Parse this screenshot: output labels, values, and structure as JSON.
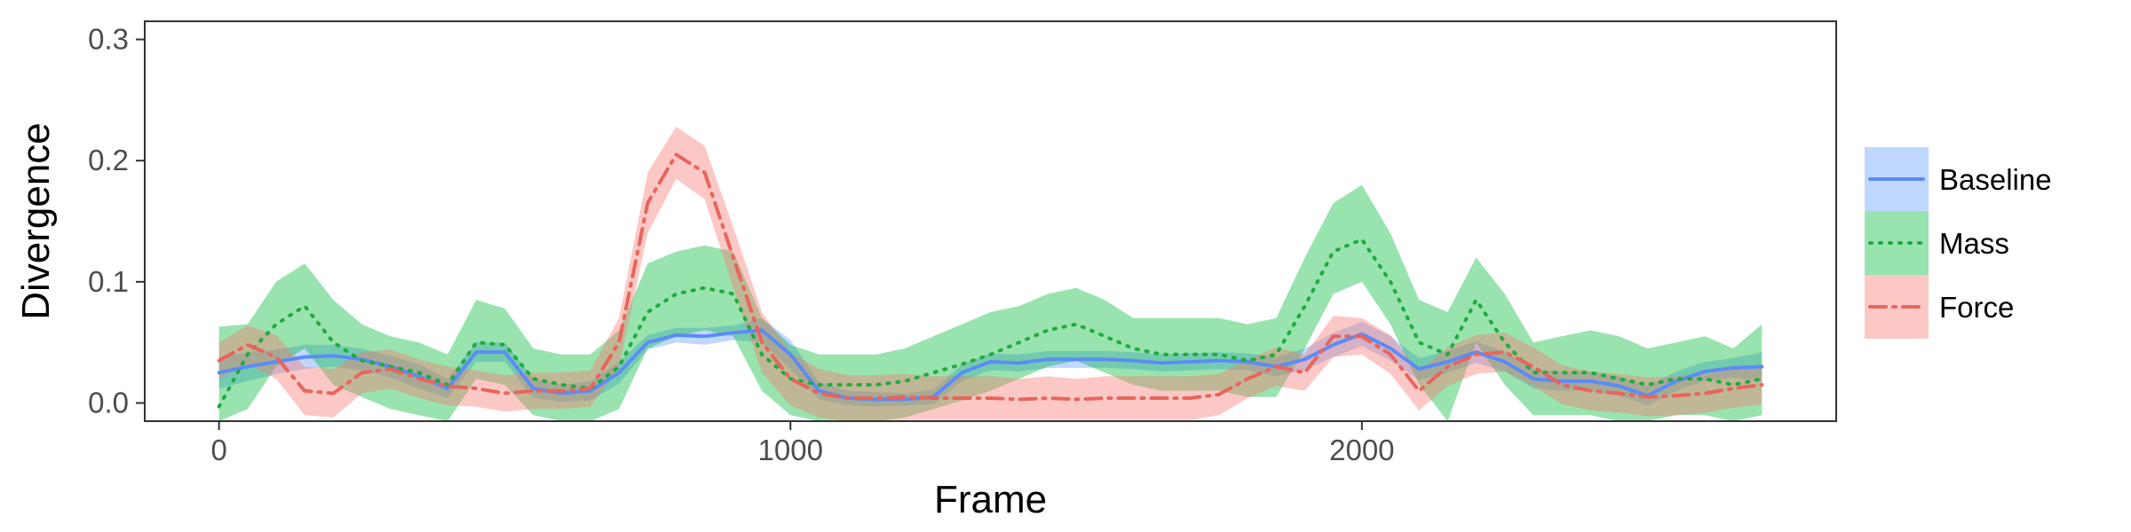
{
  "chart_data": {
    "type": "line",
    "xlabel": "Frame",
    "ylabel": "Divergence",
    "xlim": [
      -130,
      2830
    ],
    "ylim": [
      -0.015,
      0.315
    ],
    "x_ticks": [
      0,
      1000,
      2000
    ],
    "x_tick_labels": [
      "0",
      "1000",
      "2000"
    ],
    "y_ticks": [
      0.0,
      0.1,
      0.2,
      0.3
    ],
    "y_tick_labels": [
      "0.0",
      "0.1",
      "0.2",
      "0.3"
    ],
    "grid": false,
    "legend_position": "right",
    "series": [
      {
        "name": "Baseline",
        "color": "#619CFF",
        "line_color": "#5B8CF5",
        "dash": "solid",
        "x": [
          0,
          50,
          100,
          150,
          200,
          250,
          300,
          350,
          400,
          450,
          500,
          550,
          600,
          650,
          700,
          750,
          800,
          850,
          900,
          950,
          1000,
          1050,
          1100,
          1150,
          1200,
          1250,
          1300,
          1350,
          1400,
          1450,
          1500,
          1550,
          1600,
          1650,
          1700,
          1750,
          1800,
          1850,
          1900,
          1950,
          2000,
          2050,
          2100,
          2150,
          2200,
          2250,
          2300,
          2350,
          2400,
          2450,
          2500,
          2550,
          2600,
          2650,
          2700
        ],
        "y": [
          0.025,
          0.03,
          0.034,
          0.038,
          0.039,
          0.036,
          0.03,
          0.022,
          0.012,
          0.042,
          0.042,
          0.012,
          0.008,
          0.01,
          0.025,
          0.05,
          0.056,
          0.055,
          0.058,
          0.06,
          0.04,
          0.01,
          0.004,
          0.003,
          0.003,
          0.005,
          0.025,
          0.034,
          0.033,
          0.036,
          0.036,
          0.036,
          0.035,
          0.033,
          0.034,
          0.035,
          0.034,
          0.03,
          0.036,
          0.048,
          0.057,
          0.045,
          0.028,
          0.034,
          0.042,
          0.034,
          0.02,
          0.018,
          0.018,
          0.014,
          0.006,
          0.018,
          0.026,
          0.029,
          0.03
        ],
        "lower": [
          0.012,
          0.018,
          0.024,
          0.028,
          0.03,
          0.027,
          0.021,
          0.012,
          0.004,
          0.034,
          0.034,
          0.004,
          0.001,
          0.002,
          0.016,
          0.044,
          0.05,
          0.048,
          0.052,
          0.05,
          0.028,
          0.003,
          -0.002,
          -0.003,
          -0.002,
          -0.001,
          0.018,
          0.027,
          0.026,
          0.029,
          0.029,
          0.029,
          0.028,
          0.026,
          0.027,
          0.028,
          0.027,
          0.022,
          0.027,
          0.038,
          0.047,
          0.035,
          0.019,
          0.025,
          0.033,
          0.026,
          0.012,
          0.01,
          0.01,
          0.006,
          -0.002,
          0.01,
          0.018,
          0.021,
          0.018
        ],
        "upper": [
          0.038,
          0.042,
          0.044,
          0.048,
          0.048,
          0.045,
          0.039,
          0.032,
          0.02,
          0.05,
          0.05,
          0.02,
          0.015,
          0.018,
          0.034,
          0.056,
          0.062,
          0.062,
          0.064,
          0.07,
          0.052,
          0.017,
          0.01,
          0.009,
          0.008,
          0.011,
          0.032,
          0.041,
          0.04,
          0.043,
          0.043,
          0.043,
          0.042,
          0.04,
          0.041,
          0.042,
          0.041,
          0.038,
          0.045,
          0.058,
          0.067,
          0.055,
          0.037,
          0.043,
          0.051,
          0.042,
          0.028,
          0.026,
          0.026,
          0.022,
          0.014,
          0.026,
          0.034,
          0.037,
          0.042
        ]
      },
      {
        "name": "Mass",
        "color": "#00BA38",
        "line_color": "#1FAA3E",
        "dash": "dotted",
        "x": [
          0,
          50,
          100,
          150,
          200,
          250,
          300,
          350,
          400,
          450,
          500,
          550,
          600,
          650,
          700,
          750,
          800,
          850,
          900,
          950,
          1000,
          1050,
          1100,
          1150,
          1200,
          1250,
          1300,
          1350,
          1400,
          1450,
          1500,
          1550,
          1600,
          1650,
          1700,
          1750,
          1800,
          1850,
          1900,
          1950,
          2000,
          2050,
          2100,
          2150,
          2200,
          2250,
          2300,
          2350,
          2400,
          2450,
          2500,
          2550,
          2600,
          2650,
          2700
        ],
        "y": [
          -0.003,
          0.04,
          0.065,
          0.08,
          0.05,
          0.035,
          0.03,
          0.025,
          0.015,
          0.05,
          0.048,
          0.02,
          0.015,
          0.012,
          0.03,
          0.075,
          0.09,
          0.095,
          0.09,
          0.04,
          0.02,
          0.015,
          0.015,
          0.015,
          0.018,
          0.025,
          0.032,
          0.04,
          0.05,
          0.06,
          0.065,
          0.055,
          0.045,
          0.04,
          0.04,
          0.04,
          0.035,
          0.04,
          0.08,
          0.125,
          0.135,
          0.1,
          0.05,
          0.04,
          0.085,
          0.05,
          0.025,
          0.025,
          0.025,
          0.02,
          0.015,
          0.02,
          0.02,
          0.015,
          0.02
        ],
        "lower": [
          -0.015,
          -0.005,
          0.03,
          0.045,
          0.015,
          0.005,
          -0.005,
          -0.01,
          -0.015,
          0.02,
          0.015,
          -0.01,
          -0.015,
          -0.015,
          -0.005,
          0.045,
          0.055,
          0.06,
          0.055,
          0.01,
          -0.01,
          -0.015,
          -0.015,
          -0.015,
          -0.012,
          -0.005,
          0.002,
          0.01,
          0.02,
          0.03,
          0.035,
          0.025,
          0.015,
          0.01,
          0.01,
          0.01,
          0.005,
          0.005,
          0.045,
          0.09,
          0.1,
          0.065,
          0.015,
          -0.015,
          0.05,
          0.015,
          -0.01,
          -0.01,
          -0.01,
          -0.015,
          -0.015,
          -0.01,
          -0.01,
          -0.015,
          -0.01
        ],
        "upper": [
          0.063,
          0.065,
          0.1,
          0.115,
          0.085,
          0.065,
          0.055,
          0.05,
          0.04,
          0.085,
          0.078,
          0.045,
          0.04,
          0.04,
          0.06,
          0.115,
          0.125,
          0.13,
          0.125,
          0.07,
          0.048,
          0.04,
          0.04,
          0.04,
          0.045,
          0.055,
          0.065,
          0.075,
          0.08,
          0.09,
          0.095,
          0.085,
          0.07,
          0.07,
          0.07,
          0.07,
          0.065,
          0.07,
          0.12,
          0.165,
          0.18,
          0.14,
          0.085,
          0.075,
          0.12,
          0.09,
          0.05,
          0.055,
          0.06,
          0.055,
          0.045,
          0.05,
          0.055,
          0.045,
          0.065
        ]
      },
      {
        "name": "Force",
        "color": "#F8766D",
        "line_color": "#E8655C",
        "dash": "dashdot",
        "x": [
          0,
          50,
          100,
          150,
          200,
          250,
          300,
          350,
          400,
          450,
          500,
          550,
          600,
          650,
          700,
          750,
          800,
          850,
          900,
          950,
          1000,
          1050,
          1100,
          1150,
          1200,
          1250,
          1300,
          1350,
          1400,
          1450,
          1500,
          1550,
          1600,
          1650,
          1700,
          1750,
          1800,
          1850,
          1900,
          1950,
          2000,
          2050,
          2100,
          2150,
          2200,
          2250,
          2300,
          2350,
          2400,
          2450,
          2500,
          2550,
          2600,
          2650,
          2700
        ],
        "y": [
          0.035,
          0.048,
          0.038,
          0.01,
          0.008,
          0.025,
          0.028,
          0.02,
          0.014,
          0.012,
          0.008,
          0.01,
          0.01,
          0.012,
          0.05,
          0.165,
          0.205,
          0.19,
          0.12,
          0.05,
          0.02,
          0.008,
          0.004,
          0.004,
          0.005,
          0.004,
          0.004,
          0.004,
          0.003,
          0.004,
          0.003,
          0.004,
          0.004,
          0.004,
          0.004,
          0.007,
          0.02,
          0.03,
          0.025,
          0.055,
          0.055,
          0.04,
          0.01,
          0.03,
          0.04,
          0.042,
          0.03,
          0.015,
          0.01,
          0.008,
          0.005,
          0.006,
          0.008,
          0.012,
          0.015
        ],
        "lower": [
          0.02,
          0.032,
          0.02,
          -0.01,
          -0.012,
          0.008,
          0.012,
          0.004,
          -0.002,
          -0.003,
          -0.007,
          -0.005,
          -0.005,
          -0.003,
          0.03,
          0.14,
          0.185,
          0.168,
          0.095,
          0.025,
          -0.002,
          -0.012,
          -0.015,
          -0.015,
          -0.014,
          -0.014,
          -0.014,
          -0.014,
          -0.014,
          -0.014,
          -0.014,
          -0.014,
          -0.014,
          -0.014,
          -0.014,
          -0.01,
          0.004,
          0.014,
          0.01,
          0.038,
          0.04,
          0.024,
          -0.006,
          0.014,
          0.024,
          0.026,
          0.014,
          -0.001,
          -0.006,
          -0.008,
          -0.011,
          -0.01,
          -0.008,
          -0.004,
          -0.001
        ],
        "upper": [
          0.05,
          0.064,
          0.056,
          0.03,
          0.028,
          0.042,
          0.044,
          0.036,
          0.03,
          0.027,
          0.023,
          0.025,
          0.025,
          0.027,
          0.07,
          0.19,
          0.228,
          0.212,
          0.145,
          0.075,
          0.042,
          0.028,
          0.023,
          0.023,
          0.024,
          0.022,
          0.022,
          0.022,
          0.02,
          0.022,
          0.02,
          0.022,
          0.022,
          0.022,
          0.022,
          0.024,
          0.036,
          0.046,
          0.04,
          0.072,
          0.07,
          0.056,
          0.026,
          0.046,
          0.056,
          0.058,
          0.046,
          0.031,
          0.026,
          0.024,
          0.021,
          0.022,
          0.024,
          0.028,
          0.031
        ]
      }
    ]
  }
}
